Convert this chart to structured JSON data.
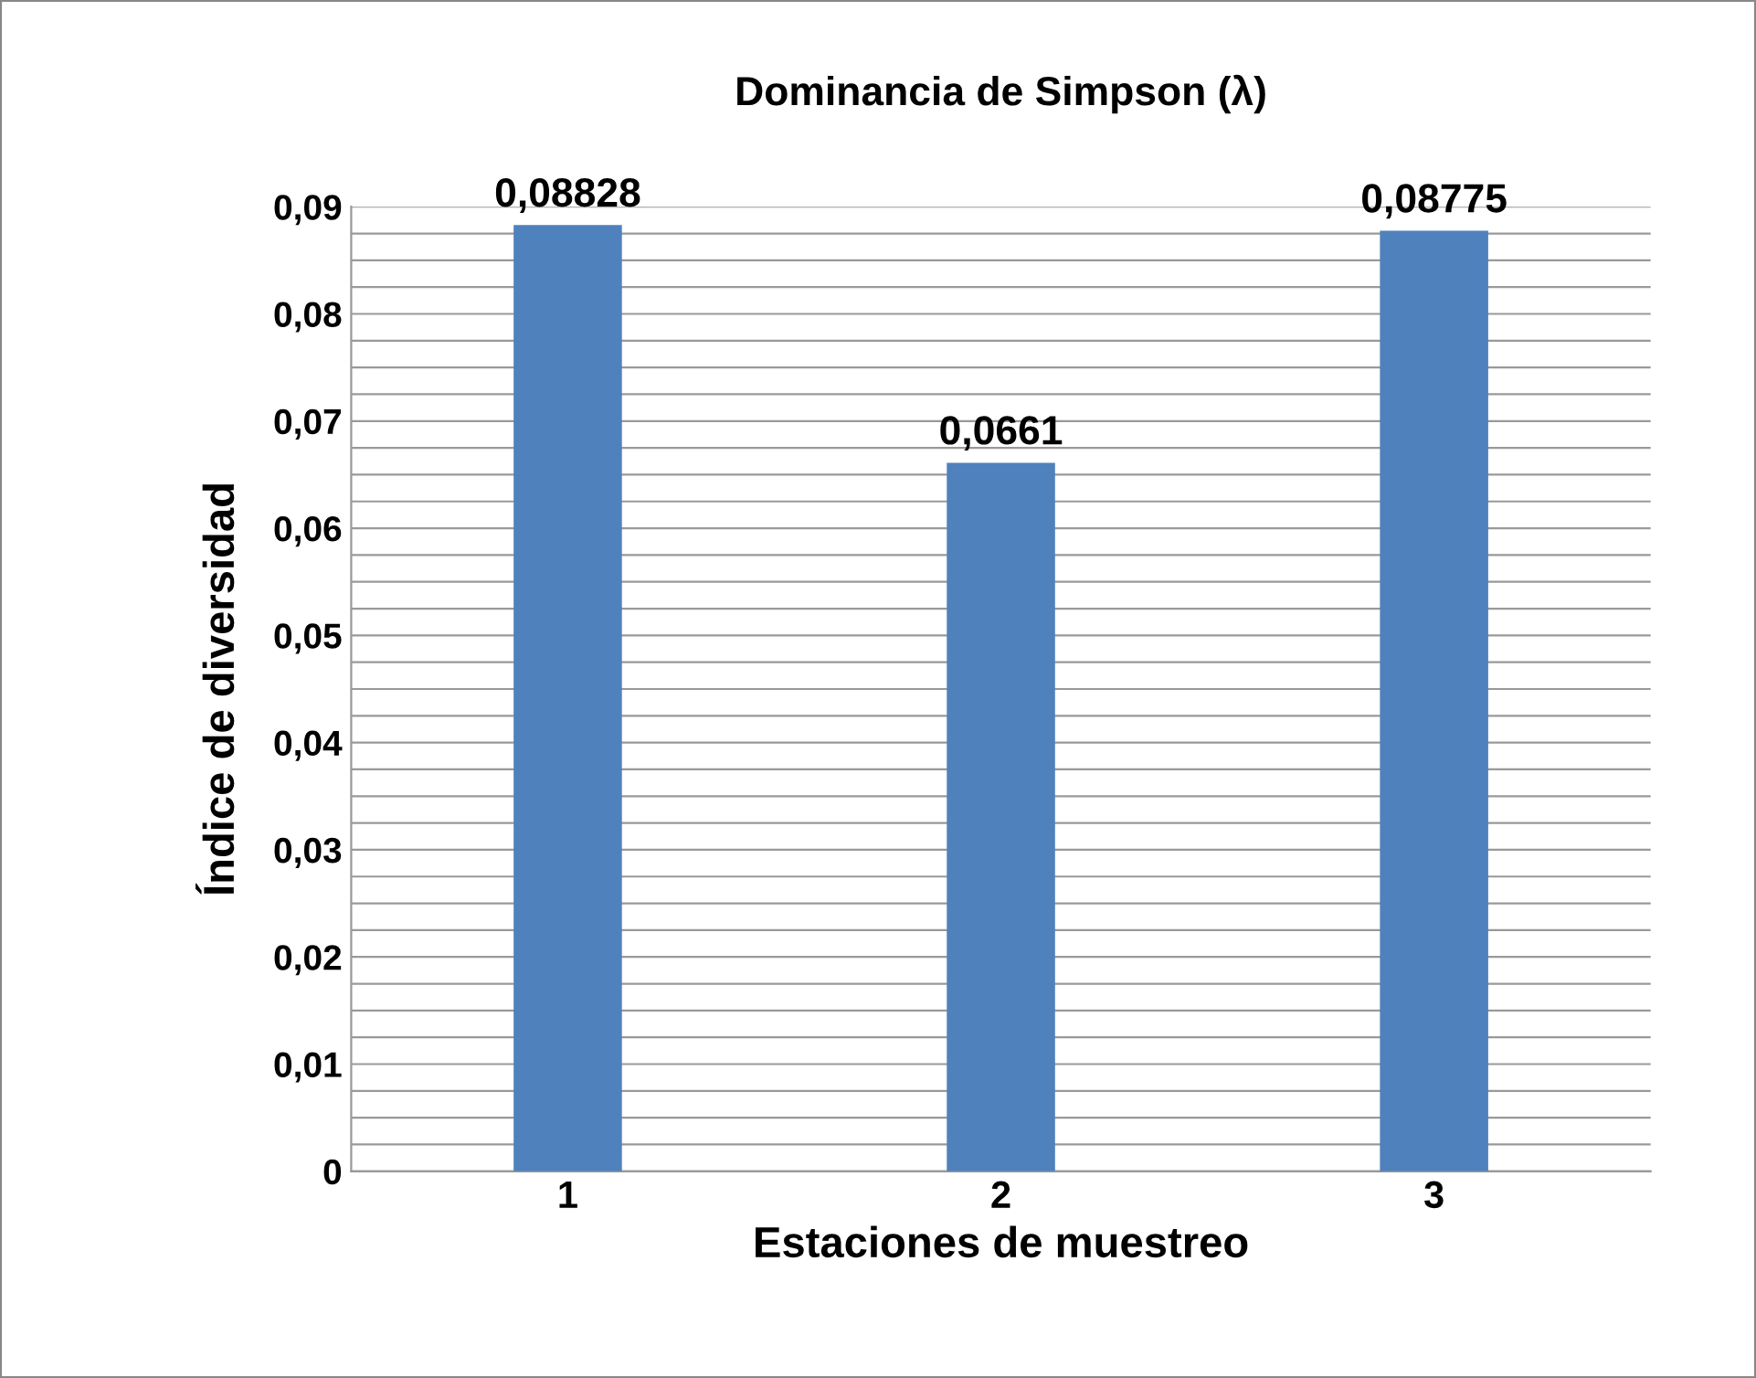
{
  "chart_data": {
    "type": "bar",
    "title": "Dominancia de Simpson (λ)",
    "xlabel": "Estaciones de muestreo",
    "ylabel": "Índice de diversidad",
    "categories": [
      "1",
      "2",
      "3"
    ],
    "values": [
      0.08828,
      0.0661,
      0.08775
    ],
    "value_labels": [
      "0,08828",
      "0,0661",
      "0,08775"
    ],
    "color": "#4f81bd",
    "ylim": [
      0,
      0.09
    ],
    "yticks": [
      {
        "value": 0,
        "label": "0"
      },
      {
        "value": 0.0025,
        "label": null
      },
      {
        "value": 0.005,
        "label": null
      },
      {
        "value": 0.0075,
        "label": null
      },
      {
        "value": 0.01,
        "label": "0,01"
      },
      {
        "value": 0.0125,
        "label": null
      },
      {
        "value": 0.015,
        "label": null
      },
      {
        "value": 0.0175,
        "label": null
      },
      {
        "value": 0.02,
        "label": "0,02"
      },
      {
        "value": 0.0225,
        "label": null
      },
      {
        "value": 0.025,
        "label": null
      },
      {
        "value": 0.0275,
        "label": null
      },
      {
        "value": 0.03,
        "label": "0,03"
      },
      {
        "value": 0.0325,
        "label": null
      },
      {
        "value": 0.035,
        "label": null
      },
      {
        "value": 0.0375,
        "label": null
      },
      {
        "value": 0.04,
        "label": "0,04"
      },
      {
        "value": 0.0425,
        "label": null
      },
      {
        "value": 0.045,
        "label": null
      },
      {
        "value": 0.0475,
        "label": null
      },
      {
        "value": 0.05,
        "label": "0,05"
      },
      {
        "value": 0.0525,
        "label": null
      },
      {
        "value": 0.055,
        "label": null
      },
      {
        "value": 0.0575,
        "label": null
      },
      {
        "value": 0.06,
        "label": "0,06"
      },
      {
        "value": 0.0625,
        "label": null
      },
      {
        "value": 0.065,
        "label": null
      },
      {
        "value": 0.0675,
        "label": null
      },
      {
        "value": 0.07,
        "label": "0,07"
      },
      {
        "value": 0.0725,
        "label": null
      },
      {
        "value": 0.075,
        "label": null
      },
      {
        "value": 0.0775,
        "label": null
      },
      {
        "value": 0.08,
        "label": "0,08"
      },
      {
        "value": 0.0825,
        "label": null
      },
      {
        "value": 0.085,
        "label": null
      },
      {
        "value": 0.0875,
        "label": null
      },
      {
        "value": 0.09,
        "label": "0,09"
      }
    ],
    "grid": "y"
  }
}
